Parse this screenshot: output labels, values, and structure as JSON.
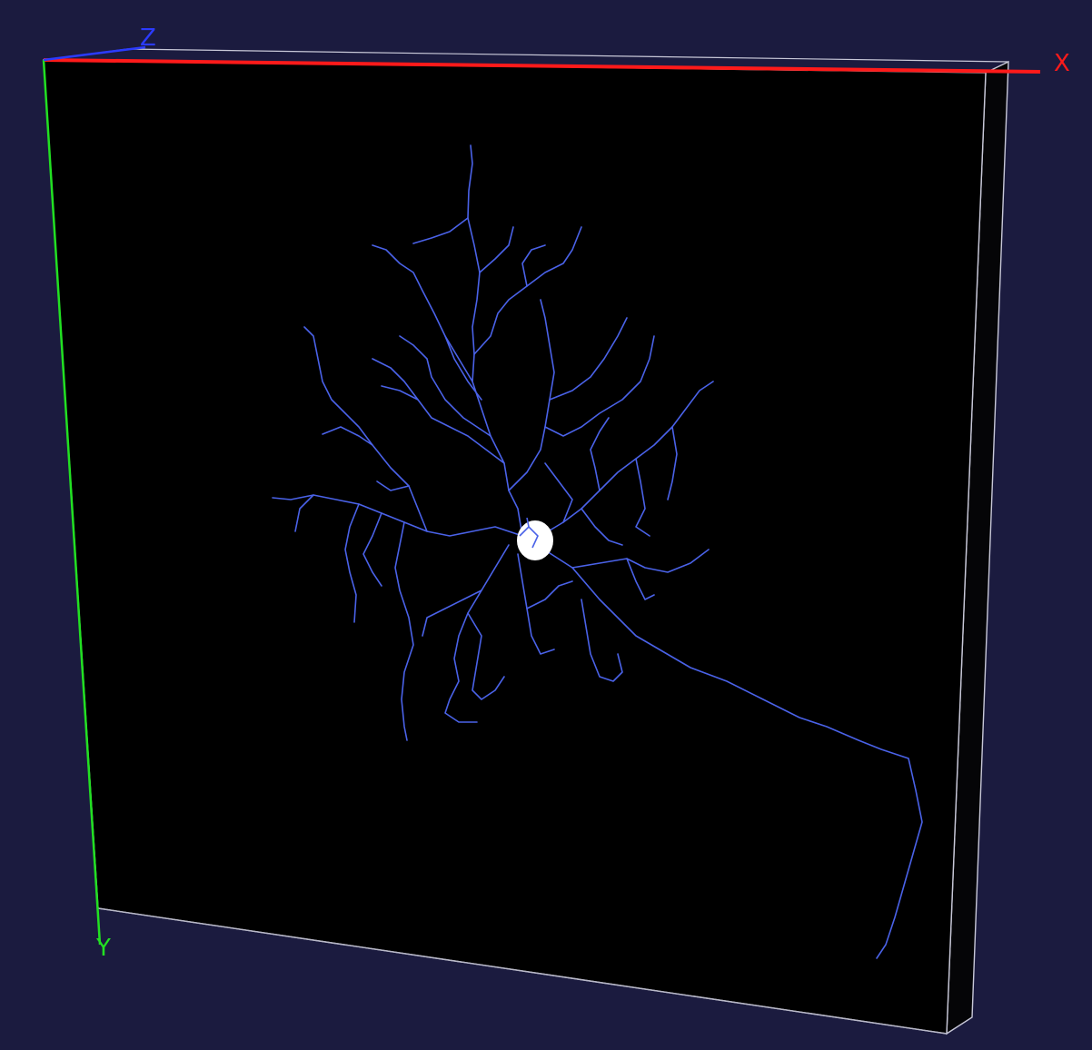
{
  "viewer": {
    "background_color": "#1b1b3f",
    "volume_color": "#000000",
    "box_edge_color": "#c8c8d8",
    "neuron_color": "#4a62e8",
    "soma_color": "#ffffff"
  },
  "axes": {
    "x": {
      "label": "X",
      "color": "#ff1a1a"
    },
    "y": {
      "label": "Y",
      "color": "#22e022"
    },
    "z": {
      "label": "Z",
      "color": "#2b3bff"
    }
  }
}
